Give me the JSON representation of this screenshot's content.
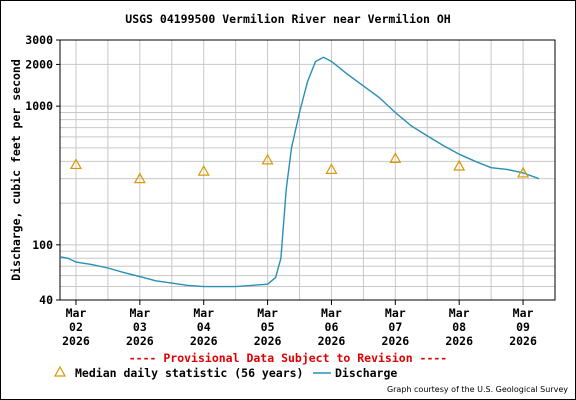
{
  "title": "USGS 04199500 Vermilion River near Vermilion OH",
  "ylabel": "Discharge, cubic feet per second",
  "provisional_note": "---- Provisional Data Subject to Revision ----",
  "credit": "Graph courtesy of the U.S. Geological Survey",
  "colors": {
    "discharge": "#2a8fb6",
    "median": "#d99a00",
    "provisional": "#e00000",
    "grid": "#c8c8c8"
  },
  "chart_data": {
    "type": "line",
    "title": "USGS 04199500 Vermilion River near Vermilion OH",
    "xlabel": "",
    "ylabel": "Discharge, cubic feet per second",
    "yscale": "log",
    "ylim": [
      40,
      3000
    ],
    "xlim": [
      "2026-03-01 18:00",
      "2026-03-09 12:00"
    ],
    "y_ticks": [
      "40",
      "100",
      "1000",
      "2000",
      "3000"
    ],
    "x_ticks": [
      {
        "value": "2026-03-02",
        "line1": "Mar",
        "line2": "02",
        "line3": "2026"
      },
      {
        "value": "2026-03-03",
        "line1": "Mar",
        "line2": "03",
        "line3": "2026"
      },
      {
        "value": "2026-03-04",
        "line1": "Mar",
        "line2": "04",
        "line3": "2026"
      },
      {
        "value": "2026-03-05",
        "line1": "Mar",
        "line2": "05",
        "line3": "2026"
      },
      {
        "value": "2026-03-06",
        "line1": "Mar",
        "line2": "06",
        "line3": "2026"
      },
      {
        "value": "2026-03-07",
        "line1": "Mar",
        "line2": "07",
        "line3": "2026"
      },
      {
        "value": "2026-03-08",
        "line1": "Mar",
        "line2": "08",
        "line3": "2026"
      },
      {
        "value": "2026-03-09",
        "line1": "Mar",
        "line2": "09",
        "line3": "2026"
      }
    ],
    "grid": true,
    "series": [
      {
        "name": "Discharge",
        "kind": "line",
        "points": [
          [
            "2026-03-01 18:00",
            82
          ],
          [
            "2026-03-01 21:00",
            80
          ],
          [
            "2026-03-02 00:00",
            75
          ],
          [
            "2026-03-02 06:00",
            72
          ],
          [
            "2026-03-02 12:00",
            68
          ],
          [
            "2026-03-02 18:00",
            63
          ],
          [
            "2026-03-03 00:00",
            59
          ],
          [
            "2026-03-03 06:00",
            55
          ],
          [
            "2026-03-03 12:00",
            53
          ],
          [
            "2026-03-03 18:00",
            51
          ],
          [
            "2026-03-04 00:00",
            50
          ],
          [
            "2026-03-04 12:00",
            50
          ],
          [
            "2026-03-04 18:00",
            51
          ],
          [
            "2026-03-05 00:00",
            52
          ],
          [
            "2026-03-05 03:00",
            58
          ],
          [
            "2026-03-05 05:00",
            80
          ],
          [
            "2026-03-05 07:00",
            250
          ],
          [
            "2026-03-05 09:00",
            500
          ],
          [
            "2026-03-05 12:00",
            900
          ],
          [
            "2026-03-05 15:00",
            1500
          ],
          [
            "2026-03-05 18:00",
            2100
          ],
          [
            "2026-03-05 21:00",
            2250
          ],
          [
            "2026-03-06 00:00",
            2100
          ],
          [
            "2026-03-06 06:00",
            1700
          ],
          [
            "2026-03-06 12:00",
            1400
          ],
          [
            "2026-03-06 18:00",
            1150
          ],
          [
            "2026-03-07 00:00",
            900
          ],
          [
            "2026-03-07 06:00",
            720
          ],
          [
            "2026-03-07 12:00",
            610
          ],
          [
            "2026-03-07 18:00",
            520
          ],
          [
            "2026-03-08 00:00",
            450
          ],
          [
            "2026-03-08 06:00",
            400
          ],
          [
            "2026-03-08 12:00",
            360
          ],
          [
            "2026-03-08 18:00",
            350
          ],
          [
            "2026-03-09 00:00",
            330
          ],
          [
            "2026-03-09 06:00",
            300
          ]
        ]
      },
      {
        "name": "Median daily statistic (56 years)",
        "kind": "marker",
        "points": [
          [
            "2026-03-02 00:00",
            380
          ],
          [
            "2026-03-03 00:00",
            300
          ],
          [
            "2026-03-04 00:00",
            340
          ],
          [
            "2026-03-05 00:00",
            410
          ],
          [
            "2026-03-06 00:00",
            350
          ],
          [
            "2026-03-07 00:00",
            420
          ],
          [
            "2026-03-08 00:00",
            370
          ],
          [
            "2026-03-09 00:00",
            330
          ]
        ]
      }
    ]
  }
}
